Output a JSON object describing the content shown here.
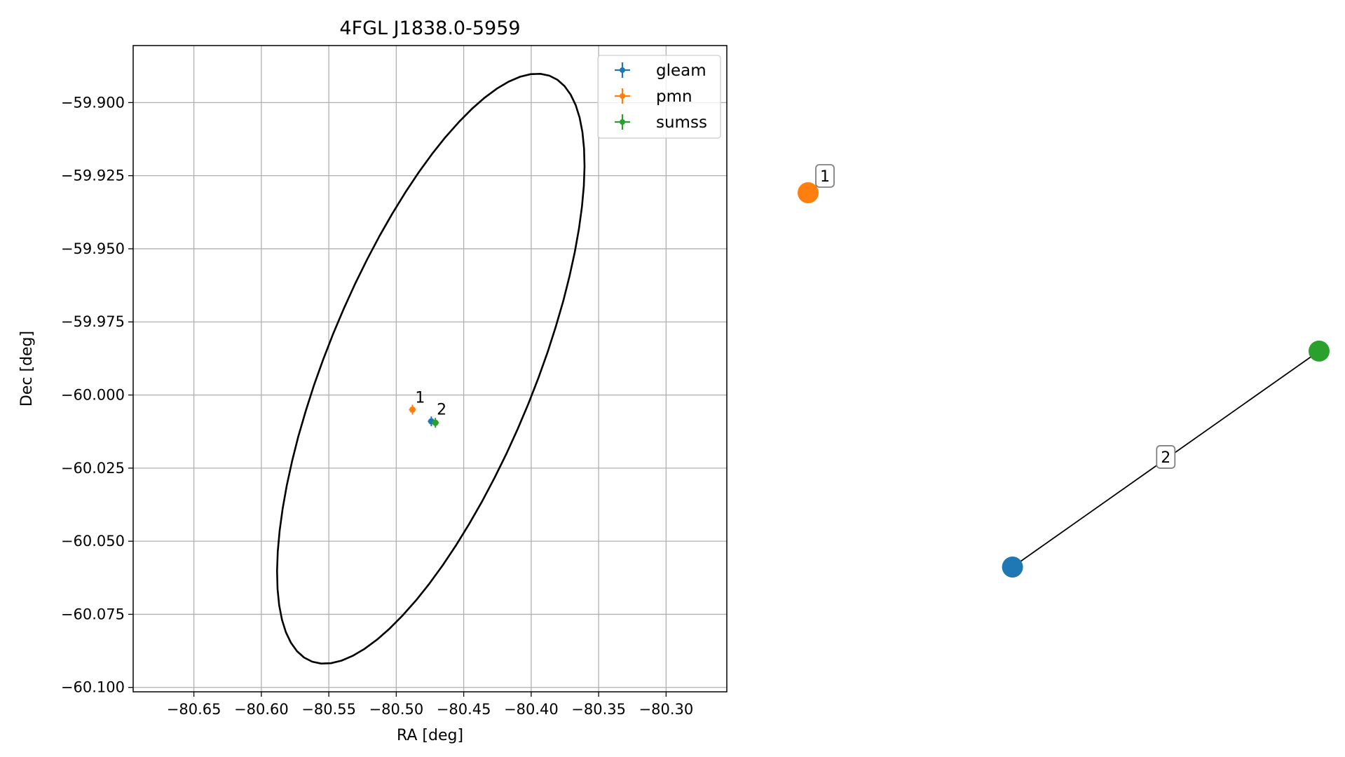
{
  "chart_data": [
    {
      "type": "scatter",
      "title": "4FGL J1838.0-5959",
      "xlabel": "RA [deg]",
      "ylabel": "Dec [deg]",
      "xlim": [
        -80.695,
        -80.255
      ],
      "ylim": [
        -60.1015,
        -59.8805
      ],
      "xticks": [
        -80.65,
        -80.6,
        -80.55,
        -80.5,
        -80.45,
        -80.4,
        -80.35,
        -80.3
      ],
      "xtick_labels": [
        "−80.65",
        "−80.60",
        "−80.55",
        "−80.50",
        "−80.45",
        "−80.40",
        "−80.35",
        "−80.30"
      ],
      "yticks": [
        -59.9,
        -59.925,
        -59.95,
        -59.975,
        -60.0,
        -60.025,
        -60.05,
        -60.075,
        -60.1
      ],
      "ytick_labels": [
        "−59.900",
        "−59.925",
        "−59.950",
        "−59.975",
        "−60.000",
        "−60.025",
        "−60.050",
        "−60.075",
        "−60.100"
      ],
      "grid": true,
      "legend_position": "top-right",
      "series": [
        {
          "name": "gleam",
          "color": "#1f77b4",
          "x": [
            -80.474
          ],
          "y": [
            -60.009
          ]
        },
        {
          "name": "pmn",
          "color": "#ff7f0e",
          "x": [
            -80.488
          ],
          "y": [
            -60.005
          ]
        },
        {
          "name": "sumss",
          "color": "#2ca02c",
          "x": [
            -80.471
          ],
          "y": [
            -60.0095
          ]
        }
      ],
      "annotations": [
        {
          "text": "1",
          "x": -80.486,
          "y": -60.001
        },
        {
          "text": "2",
          "x": -80.47,
          "y": -60.005
        }
      ],
      "error_ellipse": {
        "center": [
          -80.4744,
          -59.991
        ],
        "semi_axes": [
          0.1402,
          0.0592
        ],
        "angle_deg": 40,
        "color": "#000000"
      }
    },
    {
      "type": "scatter",
      "nodes": [
        {
          "id": "pmn",
          "color": "#ff7f0e",
          "x": 0.0,
          "y": 1.0
        },
        {
          "id": "gleam",
          "color": "#1f77b4",
          "x": 0.4,
          "y": 0.0
        },
        {
          "id": "sumss",
          "color": "#2ca02c",
          "x": 1.0,
          "y": 0.577
        }
      ],
      "edges": [
        {
          "from": "gleam",
          "to": "sumss"
        }
      ],
      "labels": [
        {
          "text": "1",
          "node": "pmn"
        },
        {
          "text": "2",
          "edge": 0
        }
      ]
    }
  ]
}
